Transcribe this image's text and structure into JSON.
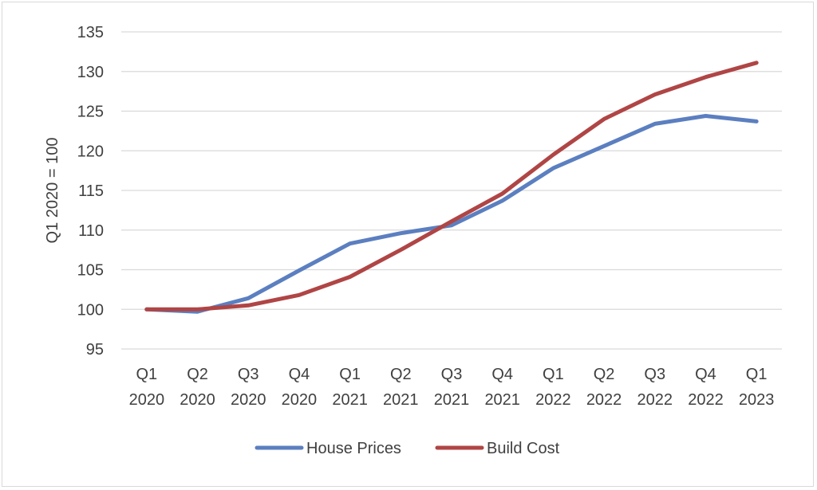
{
  "chart_data": {
    "type": "line",
    "title": "",
    "xlabel": "",
    "ylabel": "Q1 2020 = 100",
    "ylim": [
      95,
      135
    ],
    "yticks": [
      95,
      100,
      105,
      110,
      115,
      120,
      125,
      130,
      135
    ],
    "grid": true,
    "legend": "bottom",
    "categories": [
      [
        "Q1",
        "2020"
      ],
      [
        "Q2",
        "2020"
      ],
      [
        "Q3",
        "2020"
      ],
      [
        "Q4",
        "2020"
      ],
      [
        "Q1",
        "2021"
      ],
      [
        "Q2",
        "2021"
      ],
      [
        "Q3",
        "2021"
      ],
      [
        "Q4",
        "2021"
      ],
      [
        "Q1",
        "2022"
      ],
      [
        "Q2",
        "2022"
      ],
      [
        "Q3",
        "2022"
      ],
      [
        "Q4",
        "2022"
      ],
      [
        "Q1",
        "2023"
      ]
    ],
    "series": [
      {
        "name": "House Prices",
        "color": "#5b7fc0",
        "values": [
          100,
          99.7,
          101.4,
          104.9,
          108.3,
          109.6,
          110.6,
          113.7,
          117.8,
          120.6,
          123.4,
          124.4,
          123.7
        ]
      },
      {
        "name": "Build Cost",
        "color": "#b04545",
        "values": [
          100,
          100,
          100.5,
          101.8,
          104.1,
          107.5,
          111.1,
          114.6,
          119.5,
          124.0,
          127.1,
          129.3,
          131.1
        ]
      }
    ]
  }
}
